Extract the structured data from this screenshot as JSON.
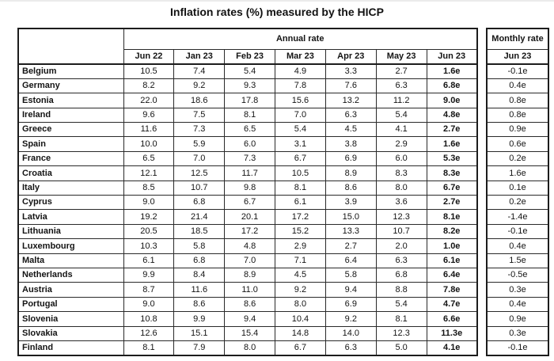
{
  "title": "Inflation rates (%) measured by the HICP",
  "table": {
    "annual_header": "Annual rate",
    "monthly_header": "Monthly rate",
    "annual_columns": [
      "Jun 22",
      "Jan 23",
      "Feb 23",
      "Mar 23",
      "Apr 23",
      "May 23",
      "Jun 23"
    ],
    "monthly_column": "Jun 23",
    "rows": [
      {
        "country": "Belgium",
        "annual": [
          "10.5",
          "7.4",
          "5.4",
          "4.9",
          "3.3",
          "2.7",
          "1.6e"
        ],
        "monthly": "-0.1e"
      },
      {
        "country": "Germany",
        "annual": [
          "8.2",
          "9.2",
          "9.3",
          "7.8",
          "7.6",
          "6.3",
          "6.8e"
        ],
        "monthly": "0.4e"
      },
      {
        "country": "Estonia",
        "annual": [
          "22.0",
          "18.6",
          "17.8",
          "15.6",
          "13.2",
          "11.2",
          "9.0e"
        ],
        "monthly": "0.8e"
      },
      {
        "country": "Ireland",
        "annual": [
          "9.6",
          "7.5",
          "8.1",
          "7.0",
          "6.3",
          "5.4",
          "4.8e"
        ],
        "monthly": "0.8e"
      },
      {
        "country": "Greece",
        "annual": [
          "11.6",
          "7.3",
          "6.5",
          "5.4",
          "4.5",
          "4.1",
          "2.7e"
        ],
        "monthly": "0.9e"
      },
      {
        "country": "Spain",
        "annual": [
          "10.0",
          "5.9",
          "6.0",
          "3.1",
          "3.8",
          "2.9",
          "1.6e"
        ],
        "monthly": "0.6e"
      },
      {
        "country": "France",
        "annual": [
          "6.5",
          "7.0",
          "7.3",
          "6.7",
          "6.9",
          "6.0",
          "5.3e"
        ],
        "monthly": "0.2e"
      },
      {
        "country": "Croatia",
        "annual": [
          "12.1",
          "12.5",
          "11.7",
          "10.5",
          "8.9",
          "8.3",
          "8.3e"
        ],
        "monthly": "1.6e"
      },
      {
        "country": "Italy",
        "annual": [
          "8.5",
          "10.7",
          "9.8",
          "8.1",
          "8.6",
          "8.0",
          "6.7e"
        ],
        "monthly": "0.1e"
      },
      {
        "country": "Cyprus",
        "annual": [
          "9.0",
          "6.8",
          "6.7",
          "6.1",
          "3.9",
          "3.6",
          "2.7e"
        ],
        "monthly": "0.2e"
      },
      {
        "country": "Latvia",
        "annual": [
          "19.2",
          "21.4",
          "20.1",
          "17.2",
          "15.0",
          "12.3",
          "8.1e"
        ],
        "monthly": "-1.4e"
      },
      {
        "country": "Lithuania",
        "annual": [
          "20.5",
          "18.5",
          "17.2",
          "15.2",
          "13.3",
          "10.7",
          "8.2e"
        ],
        "monthly": "-0.1e"
      },
      {
        "country": "Luxembourg",
        "annual": [
          "10.3",
          "5.8",
          "4.8",
          "2.9",
          "2.7",
          "2.0",
          "1.0e"
        ],
        "monthly": "0.4e"
      },
      {
        "country": "Malta",
        "annual": [
          "6.1",
          "6.8",
          "7.0",
          "7.1",
          "6.4",
          "6.3",
          "6.1e"
        ],
        "monthly": "1.5e"
      },
      {
        "country": "Netherlands",
        "annual": [
          "9.9",
          "8.4",
          "8.9",
          "4.5",
          "5.8",
          "6.8",
          "6.4e"
        ],
        "monthly": "-0.5e"
      },
      {
        "country": "Austria",
        "annual": [
          "8.7",
          "11.6",
          "11.0",
          "9.2",
          "9.4",
          "8.8",
          "7.8e"
        ],
        "monthly": "0.3e"
      },
      {
        "country": "Portugal",
        "annual": [
          "9.0",
          "8.6",
          "8.6",
          "8.0",
          "6.9",
          "5.4",
          "4.7e"
        ],
        "monthly": "0.4e"
      },
      {
        "country": "Slovenia",
        "annual": [
          "10.8",
          "9.9",
          "9.4",
          "10.4",
          "9.2",
          "8.1",
          "6.6e"
        ],
        "monthly": "0.9e"
      },
      {
        "country": "Slovakia",
        "annual": [
          "12.6",
          "15.1",
          "15.4",
          "14.8",
          "14.0",
          "12.3",
          "11.3e"
        ],
        "monthly": "0.3e"
      },
      {
        "country": "Finland",
        "annual": [
          "8.1",
          "7.9",
          "8.0",
          "6.7",
          "6.3",
          "5.0",
          "4.1e"
        ],
        "monthly": "-0.1e"
      }
    ]
  }
}
